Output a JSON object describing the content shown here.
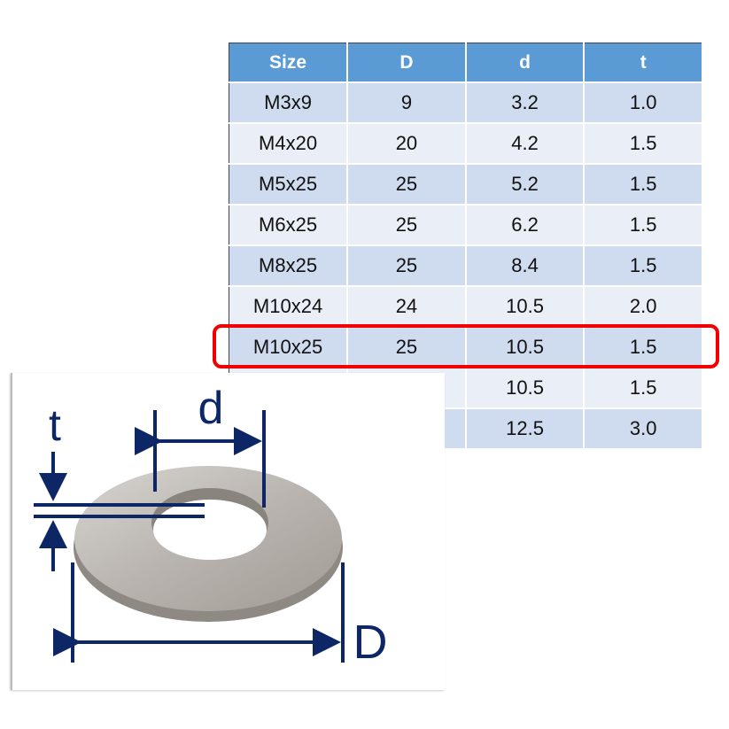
{
  "table": {
    "headers": [
      "Size",
      "D",
      "d",
      "t"
    ],
    "header_color": "#5b9bd5",
    "rows": [
      [
        "M3x9",
        "9",
        "3.2",
        "1.0"
      ],
      [
        "M4x20",
        "20",
        "4.2",
        "1.5"
      ],
      [
        "M5x25",
        "25",
        "5.2",
        "1.5"
      ],
      [
        "M6x25",
        "25",
        "6.2",
        "1.5"
      ],
      [
        "M8x25",
        "25",
        "8.4",
        "1.5"
      ],
      [
        "M10x24",
        "24",
        "10.5",
        "2.0"
      ],
      [
        "M10x25",
        "25",
        "10.5",
        "1.5"
      ],
      [
        "",
        "",
        "10.5",
        "1.5"
      ],
      [
        "",
        "",
        "12.5",
        "3.0"
      ]
    ],
    "highlighted_row": "M10x25",
    "highlight_color": "#f00000"
  },
  "diagram": {
    "labels": {
      "thickness": "t",
      "inner_diameter": "d",
      "outer_diameter": "D"
    },
    "line_color": "#0d2766"
  }
}
